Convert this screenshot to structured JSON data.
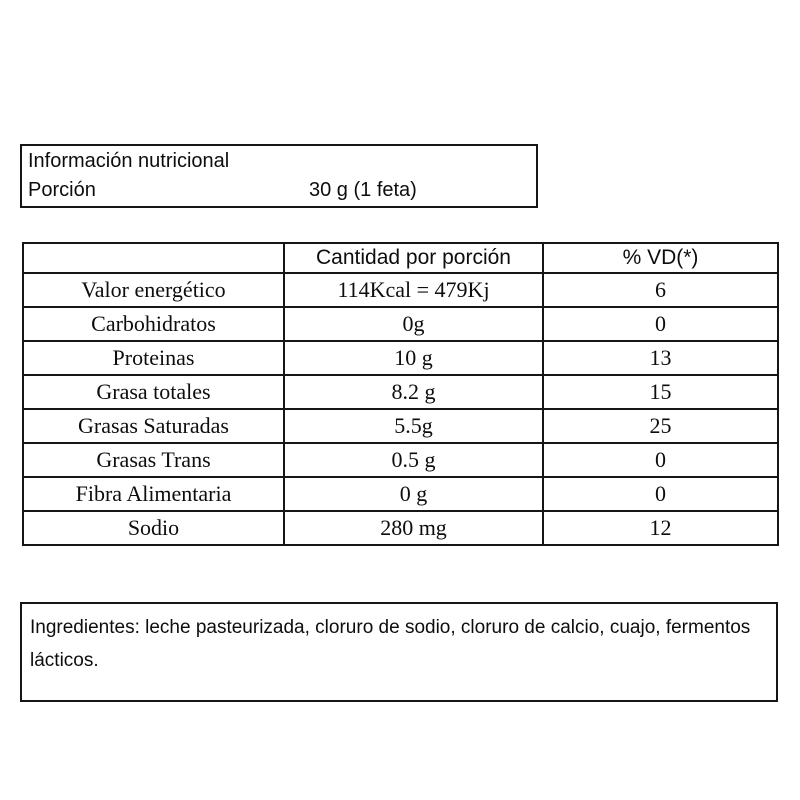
{
  "colors": {
    "text": "#0d0d0d",
    "border": "#161616",
    "background": "#ffffff"
  },
  "header_box": {
    "title": "Información nutricional",
    "portion_label": "Porción",
    "portion_value": "30 g (1 feta)"
  },
  "nutrition_table": {
    "columns": [
      "",
      "Cantidad por porción",
      "% VD(*)"
    ],
    "rows": [
      {
        "label": "Valor energético",
        "amount": "114Kcal = 479Kj",
        "vd": "6"
      },
      {
        "label": "Carbohidratos",
        "amount": "0g",
        "vd": "0"
      },
      {
        "label": "Proteinas",
        "amount": "10 g",
        "vd": "13"
      },
      {
        "label": "Grasa totales",
        "amount": "8.2 g",
        "vd": "15"
      },
      {
        "label": "Grasas Saturadas",
        "amount": "5.5g",
        "vd": "25"
      },
      {
        "label": "Grasas Trans",
        "amount": "0.5 g",
        "vd": "0"
      },
      {
        "label": "Fibra Alimentaria",
        "amount": "0 g",
        "vd": "0"
      },
      {
        "label": "Sodio",
        "amount": "280 mg",
        "vd": "12"
      }
    ]
  },
  "ingredients_box": {
    "text": "Ingredientes: leche pasteurizada, cloruro de sodio, cloruro de calcio, cuajo, fermentos lácticos."
  }
}
